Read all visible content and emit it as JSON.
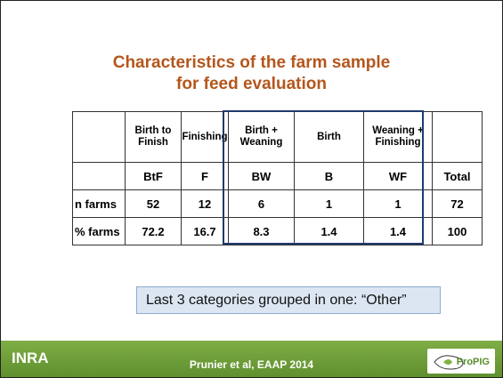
{
  "slide": {
    "title": [
      "Characteristics of the farm sample",
      "for feed evaluation"
    ],
    "table": {
      "header": [
        "",
        "Birth to Finish",
        "Finishing",
        "Birth + Weaning",
        "Birth",
        "Weaning + Finishing",
        ""
      ],
      "rows": [
        [
          "",
          "BtF",
          "F",
          "BW",
          "B",
          "WF",
          "Total"
        ],
        [
          "n farms",
          "52",
          "12",
          "6",
          "1",
          "1",
          "72"
        ],
        [
          "% farms",
          "72.2",
          "16.7",
          "8.3",
          "1.4",
          "1.4",
          "100"
        ]
      ]
    },
    "note": "Last 3 categories grouped in one: “Other”",
    "footer": {
      "logo_left": "INRA",
      "citation": "Prunier et al, EAAP 2014",
      "logo_right": "ProPIG"
    }
  }
}
